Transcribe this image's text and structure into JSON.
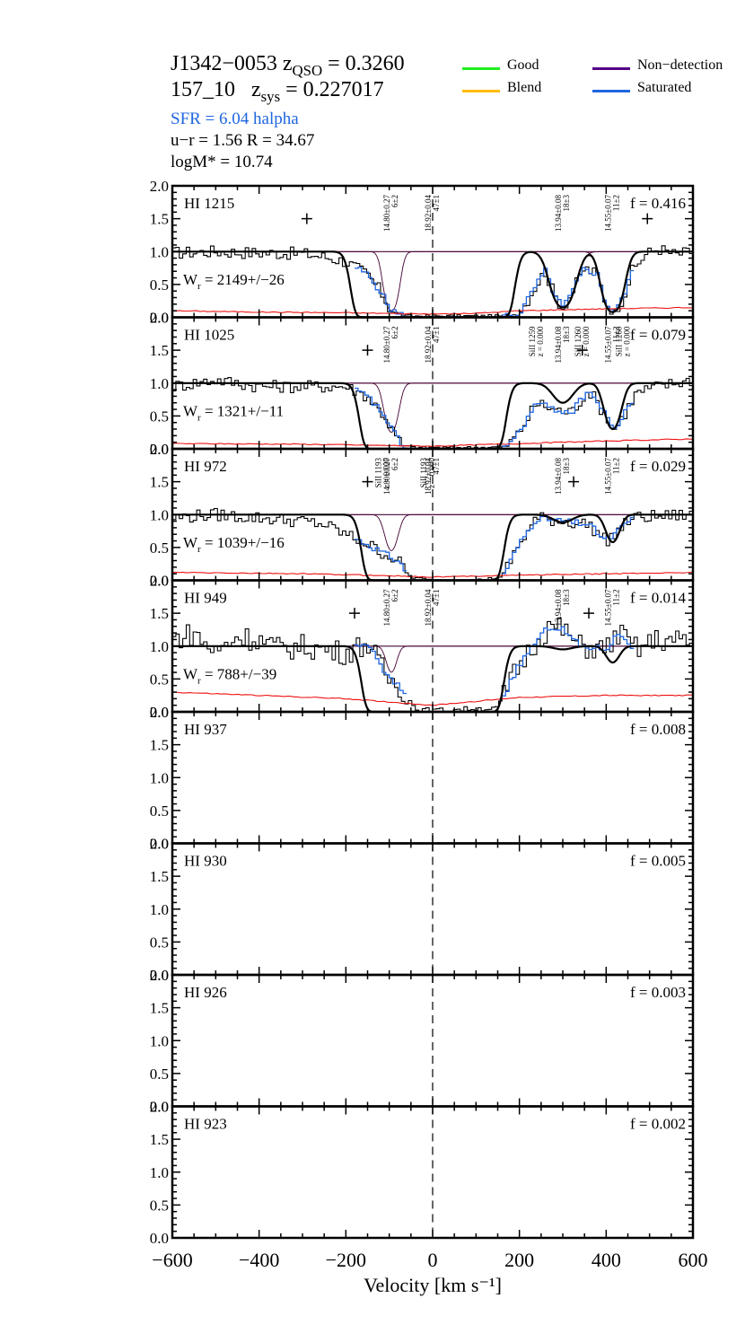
{
  "header": {
    "qso_name": "J1342−0053",
    "z_qso_label": "z",
    "z_qso_sub": "QSO",
    "z_qso_value": " = 0.3260",
    "galaxy_id": "157_10",
    "z_sys_label": "z",
    "z_sys_sub": "sys",
    "z_sys_value": " = 0.227017",
    "sfr": "SFR =  6.04  halpha",
    "ur_r": "u−r = 1.56   R = 34.67",
    "logm": "logM* =  10.74"
  },
  "legend": [
    {
      "label": "Good",
      "color": "#22ee22"
    },
    {
      "label": "Blend",
      "color": "#ffbb00"
    },
    {
      "label": "Non−detection",
      "color": "#550088"
    },
    {
      "label": "Saturated",
      "color": "#1f66e0"
    }
  ],
  "colors": {
    "data": "#000000",
    "saturated": "#1f66e0",
    "error": "#ee1111",
    "component": "#440033",
    "model": "#000000"
  },
  "chart_data": {
    "type": "line",
    "xlabel": "Velocity [km s⁻¹]",
    "xlim": [
      -600,
      600
    ],
    "ylim": [
      0,
      2.0
    ],
    "xticks": [
      "−600",
      "−400",
      "−200",
      "0",
      "200",
      "400",
      "600"
    ],
    "xtick_values": [
      -600,
      -400,
      -200,
      0,
      200,
      400,
      600
    ],
    "yticks": [
      "0.0",
      "0.5",
      "1.0",
      "1.5",
      "2.0"
    ],
    "ytick_values": [
      0.0,
      0.5,
      1.0,
      1.5,
      2.0
    ],
    "panels": [
      {
        "line": "HI 1215",
        "f": "f = 0.416",
        "wr": "W",
        "wr_sub": "r",
        "wr_value": " = 2149+/−26",
        "plus_markers": [
          [
            -290,
            1.5
          ],
          [
            495,
            1.5
          ]
        ],
        "components": [
          {
            "v": -95,
            "label": [
              "14.80±0.27",
              "6±2"
            ]
          },
          {
            "v": 0,
            "label": [
              "18.92±0.04",
              "47±1"
            ]
          },
          {
            "v": 300,
            "label": [
              "13.94±0.08",
              "18±3"
            ]
          },
          {
            "v": 415,
            "label": [
              "14.55±0.07",
              "11±2"
            ]
          }
        ],
        "absorption": [
          {
            "center": -95,
            "depth": 0.9,
            "width": 18
          },
          {
            "center": 0,
            "depth": 1.0,
            "width": 140,
            "flat": true
          },
          {
            "center": 300,
            "depth": 0.85,
            "width": 30
          },
          {
            "center": 415,
            "depth": 0.92,
            "width": 25
          }
        ],
        "data_curve": [
          [
            -600,
            0.98
          ],
          [
            -500,
            1.0
          ],
          [
            -400,
            0.98
          ],
          [
            -300,
            0.97
          ],
          [
            -250,
            0.92
          ],
          [
            -200,
            0.85
          ],
          [
            -150,
            0.65
          ],
          [
            -120,
            0.4
          ],
          [
            -100,
            0.15
          ],
          [
            -80,
            0.05
          ],
          [
            -60,
            0.02
          ],
          [
            0,
            0.02
          ],
          [
            100,
            0.02
          ],
          [
            160,
            0.02
          ],
          [
            200,
            0.05
          ],
          [
            240,
            0.5
          ],
          [
            260,
            0.7
          ],
          [
            280,
            0.35
          ],
          [
            300,
            0.15
          ],
          [
            320,
            0.35
          ],
          [
            350,
            0.75
          ],
          [
            380,
            0.65
          ],
          [
            400,
            0.2
          ],
          [
            420,
            0.1
          ],
          [
            440,
            0.3
          ],
          [
            460,
            0.7
          ],
          [
            490,
            0.95
          ],
          [
            520,
            1.05
          ],
          [
            560,
            0.95
          ],
          [
            600,
            1.0
          ]
        ],
        "error_curve": [
          [
            -600,
            0.1
          ],
          [
            -400,
            0.08
          ],
          [
            -200,
            0.07
          ],
          [
            -100,
            0.06
          ],
          [
            0,
            0.05
          ],
          [
            100,
            0.06
          ],
          [
            200,
            0.1
          ],
          [
            400,
            0.13
          ],
          [
            600,
            0.15
          ]
        ]
      },
      {
        "line": "HI 1025",
        "f": "f = 0.079",
        "wr": "W",
        "wr_sub": "r",
        "wr_value": " = 1321+/−11",
        "plus_markers": [
          [
            -150,
            1.5
          ],
          [
            345,
            1.5
          ]
        ],
        "components": [
          {
            "v": -95,
            "label": [
              "14.80±0.27",
              "6±2"
            ]
          },
          {
            "v": 0,
            "label": [
              "18.92±0.04",
              "47±1"
            ]
          },
          {
            "v": 240,
            "label": [
              "SiII 1259",
              "z = 0.000"
            ]
          },
          {
            "v": 300,
            "label": [
              "13.94±0.08",
              "18±3"
            ]
          },
          {
            "v": 345,
            "label": [
              "SiII 1260",
              "z = 0.000"
            ]
          },
          {
            "v": 415,
            "label": [
              "14.55±0.07",
              "11±2"
            ]
          },
          {
            "v": 440,
            "label": [
              "SiII 1260",
              "z = 0.000"
            ]
          }
        ],
        "absorption": [
          {
            "center": -95,
            "depth": 0.75,
            "width": 18
          },
          {
            "center": 0,
            "depth": 1.0,
            "width": 120,
            "flat": true
          },
          {
            "center": 300,
            "depth": 0.3,
            "width": 30
          },
          {
            "center": 415,
            "depth": 0.7,
            "width": 22
          }
        ],
        "data_curve": [
          [
            -600,
            0.95
          ],
          [
            -500,
            1.05
          ],
          [
            -400,
            0.95
          ],
          [
            -300,
            0.95
          ],
          [
            -200,
            0.95
          ],
          [
            -150,
            0.8
          ],
          [
            -110,
            0.5
          ],
          [
            -90,
            0.25
          ],
          [
            -70,
            0.05
          ],
          [
            -40,
            0.02
          ],
          [
            0,
            0.02
          ],
          [
            100,
            0.02
          ],
          [
            170,
            0.03
          ],
          [
            200,
            0.25
          ],
          [
            240,
            0.7
          ],
          [
            280,
            0.6
          ],
          [
            320,
            0.55
          ],
          [
            360,
            0.9
          ],
          [
            400,
            0.5
          ],
          [
            420,
            0.3
          ],
          [
            440,
            0.5
          ],
          [
            470,
            0.85
          ],
          [
            520,
            0.95
          ],
          [
            600,
            1.05
          ]
        ],
        "error_curve": [
          [
            -600,
            0.08
          ],
          [
            -300,
            0.07
          ],
          [
            -100,
            0.05
          ],
          [
            0,
            0.04
          ],
          [
            200,
            0.08
          ],
          [
            400,
            0.12
          ],
          [
            600,
            0.15
          ]
        ]
      },
      {
        "line": "HI 972",
        "f": "f = 0.029",
        "wr": "W",
        "wr_sub": "r",
        "wr_value": " = 1039+/−16",
        "plus_markers": [
          [
            -150,
            1.5
          ],
          [
            325,
            1.5
          ]
        ],
        "components": [
          {
            "v": -115,
            "label": [
              "SiII 1193",
              "z = 0.000"
            ]
          },
          {
            "v": -95,
            "label": [
              "14.80±0.27",
              "6±2"
            ]
          },
          {
            "v": -10,
            "label": [
              "SiII 1193",
              "z = 0.000"
            ]
          },
          {
            "v": 0,
            "label": [
              "18.92±0.04",
              "47±1"
            ]
          },
          {
            "v": 300,
            "label": [
              "13.94±0.08",
              "18±3"
            ]
          },
          {
            "v": 415,
            "label": [
              "14.55±0.07",
              "11±2"
            ]
          }
        ],
        "absorption": [
          {
            "center": -95,
            "depth": 0.55,
            "width": 18
          },
          {
            "center": 0,
            "depth": 1.0,
            "width": 115,
            "flat": true
          },
          {
            "center": 300,
            "depth": 0.12,
            "width": 30
          },
          {
            "center": 415,
            "depth": 0.42,
            "width": 20
          }
        ],
        "data_curve": [
          [
            -600,
            0.95
          ],
          [
            -500,
            1.0
          ],
          [
            -400,
            0.95
          ],
          [
            -300,
            0.9
          ],
          [
            -250,
            0.85
          ],
          [
            -200,
            0.7
          ],
          [
            -150,
            0.55
          ],
          [
            -110,
            0.4
          ],
          [
            -80,
            0.3
          ],
          [
            -50,
            0.05
          ],
          [
            0,
            0.0
          ],
          [
            100,
            0.0
          ],
          [
            160,
            0.05
          ],
          [
            200,
            0.55
          ],
          [
            240,
            0.95
          ],
          [
            300,
            0.9
          ],
          [
            360,
            0.85
          ],
          [
            400,
            0.6
          ],
          [
            420,
            0.7
          ],
          [
            460,
            0.95
          ],
          [
            600,
            1.0
          ]
        ],
        "error_curve": [
          [
            -600,
            0.12
          ],
          [
            -300,
            0.1
          ],
          [
            -100,
            0.07
          ],
          [
            0,
            0.05
          ],
          [
            200,
            0.08
          ],
          [
            400,
            0.1
          ],
          [
            600,
            0.12
          ]
        ]
      },
      {
        "line": "HI 949",
        "f": "f = 0.014",
        "wr": "W",
        "wr_sub": "r",
        "wr_value": " = 788+/−39",
        "plus_markers": [
          [
            -180,
            1.5
          ],
          [
            360,
            1.5
          ]
        ],
        "components": [
          {
            "v": -95,
            "label": [
              "14.80±0.27",
              "6±2"
            ]
          },
          {
            "v": 0,
            "label": [
              "18.92±0.04",
              "47±1"
            ]
          },
          {
            "v": 300,
            "label": [
              "13.94±0.08",
              "18±3"
            ]
          },
          {
            "v": 415,
            "label": [
              "14.55±0.07",
              "11±2"
            ]
          }
        ],
        "absorption": [
          {
            "center": -95,
            "depth": 0.4,
            "width": 15
          },
          {
            "center": 0,
            "depth": 1.0,
            "width": 115,
            "flat": true
          },
          {
            "center": 300,
            "depth": 0.05,
            "width": 30
          },
          {
            "center": 415,
            "depth": 0.25,
            "width": 20
          }
        ],
        "data_curve": [
          [
            -600,
            1.1
          ],
          [
            -550,
            1.2
          ],
          [
            -500,
            0.9
          ],
          [
            -450,
            1.15
          ],
          [
            -400,
            1.1
          ],
          [
            -350,
            0.95
          ],
          [
            -300,
            1.0
          ],
          [
            -250,
            0.95
          ],
          [
            -200,
            0.9
          ],
          [
            -150,
            1.05
          ],
          [
            -120,
            0.7
          ],
          [
            -100,
            0.5
          ],
          [
            -70,
            0.35
          ],
          [
            -40,
            0.05
          ],
          [
            0,
            0.02
          ],
          [
            100,
            0.05
          ],
          [
            150,
            0.05
          ],
          [
            190,
            0.6
          ],
          [
            230,
            1.0
          ],
          [
            270,
            1.3
          ],
          [
            300,
            1.25
          ],
          [
            340,
            1.0
          ],
          [
            400,
            0.95
          ],
          [
            430,
            1.2
          ],
          [
            470,
            0.95
          ],
          [
            520,
            1.1
          ],
          [
            600,
            1.05
          ]
        ],
        "error_curve": [
          [
            -600,
            0.3
          ],
          [
            -400,
            0.25
          ],
          [
            -200,
            0.2
          ],
          [
            0,
            0.1
          ],
          [
            200,
            0.22
          ],
          [
            400,
            0.25
          ],
          [
            600,
            0.25
          ]
        ]
      },
      {
        "line": "HI 937",
        "f": "f = 0.008"
      },
      {
        "line": "HI 930",
        "f": "f = 0.005"
      },
      {
        "line": "HI 926",
        "f": "f = 0.003"
      },
      {
        "line": "HI 923",
        "f": "f = 0.002"
      }
    ]
  }
}
